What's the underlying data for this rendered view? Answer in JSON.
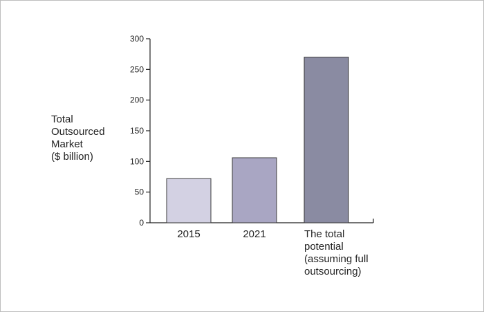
{
  "chart_data": {
    "type": "bar",
    "categories": [
      "2015",
      "2021",
      "The total potential (assuming full outsourcing)"
    ],
    "category_label_lines": [
      [
        "2015"
      ],
      [
        "2021"
      ],
      [
        "The total",
        "potential",
        "(assuming full",
        "outsourcing)"
      ]
    ],
    "values": [
      72,
      106,
      270
    ],
    "bar_colors": [
      "#d3d1e3",
      "#a9a6c3",
      "#8a8ba2"
    ],
    "title": "",
    "xlabel": "",
    "ylabel": "Total Outsourced Market ($ billion)",
    "ylabel_lines": [
      "Total",
      "Outsourced",
      "Market",
      "($ billion)"
    ],
    "ylim": [
      0,
      300
    ],
    "yticks": [
      0,
      50,
      100,
      150,
      200,
      250,
      300
    ],
    "grid": false,
    "legend": "none"
  }
}
